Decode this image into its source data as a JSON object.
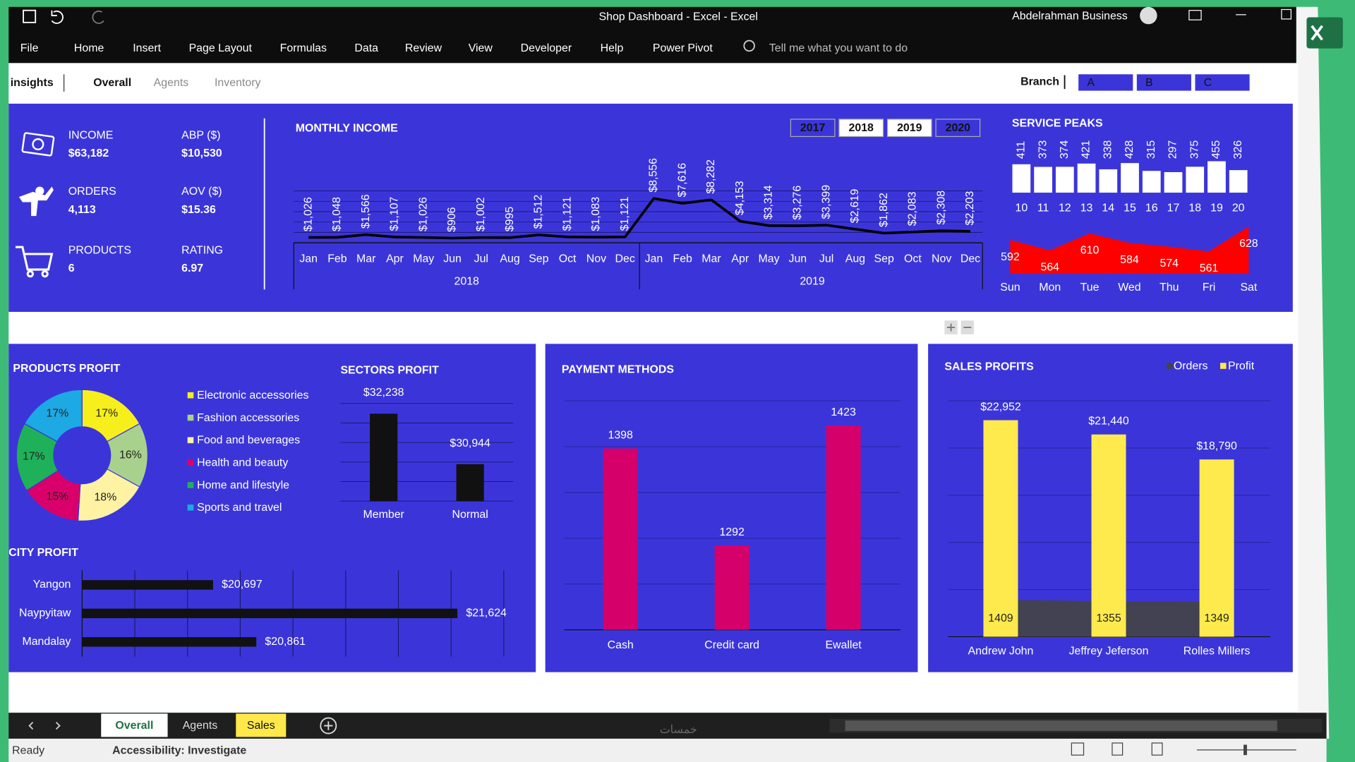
{
  "window": {
    "title": "Shop Dashboard - Excel  -  Excel",
    "user": "Abdelrahman Business"
  },
  "ribbon": {
    "tabs": [
      "File",
      "Home",
      "Insert",
      "Page Layout",
      "Formulas",
      "Data",
      "Review",
      "View",
      "Developer",
      "Help",
      "Power Pivot"
    ],
    "search": "Tell me what you want to do"
  },
  "nav": {
    "title": "insights",
    "tabs": [
      "Overall",
      "Agents",
      "Inventory"
    ],
    "branch_label": "Branch",
    "branches": [
      "A",
      "B",
      "C"
    ]
  },
  "kpis": [
    {
      "label": "INCOME",
      "value": "$63,182"
    },
    {
      "label": "ABP ($)",
      "value": "$10,530"
    },
    {
      "label": "ORDERS",
      "value": "4,113"
    },
    {
      "label": "AOV ($)",
      "value": "$15.36"
    },
    {
      "label": "PRODUCTS",
      "value": "6"
    },
    {
      "label": "RATING",
      "value": "6.97"
    }
  ],
  "monthly_income": {
    "type": "line",
    "title": "MONTHLY INCOME",
    "year_buttons": [
      "2017",
      "2018",
      "2019",
      "2020"
    ],
    "color": "#000000",
    "months": [
      "Jan",
      "Feb",
      "Mar",
      "Apr",
      "May",
      "Jun",
      "Jul",
      "Aug",
      "Sep",
      "Oct",
      "Nov",
      "Dec",
      "Jan",
      "Feb",
      "Mar",
      "Apr",
      "May",
      "Jun",
      "Jul",
      "Aug",
      "Sep",
      "Oct",
      "Nov",
      "Dec"
    ],
    "years": [
      "2018",
      "2019"
    ],
    "values": [
      1026,
      1048,
      1566,
      1107,
      1026,
      906,
      1002,
      995,
      1512,
      1121,
      1083,
      1121,
      8556,
      7616,
      8282,
      4153,
      3314,
      3276,
      3399,
      2619,
      1862,
      2083,
      2308,
      2203
    ],
    "value_labels": [
      "$1,026",
      "$1,048",
      "$1,566",
      "$1,107",
      "$1,026",
      "$906",
      "$1,002",
      "$995",
      "$1,512",
      "$1,121",
      "$1,083",
      "$1,121",
      "$8,556",
      "$7,616",
      "$8,282",
      "$4,153",
      "$3,314",
      "$3,276",
      "$3,399",
      "$2,619",
      "$1,862",
      "$2,083",
      "$2,308",
      "$2,203"
    ],
    "ylim": [
      0,
      10000
    ],
    "yticks": [
      0,
      2000,
      4000,
      6000,
      8000,
      10000
    ]
  },
  "service_peaks": {
    "title": "SERVICE PEAKS",
    "hours": {
      "type": "bar",
      "categories": [
        "10",
        "11",
        "12",
        "13",
        "14",
        "15",
        "16",
        "17",
        "18",
        "19",
        "20"
      ],
      "values": [
        411,
        373,
        374,
        421,
        338,
        428,
        315,
        297,
        375,
        455,
        326
      ],
      "ylim": [
        0,
        500
      ],
      "color": "#ffffff"
    },
    "days": {
      "type": "area",
      "categories": [
        "Sun",
        "Mon",
        "Tue",
        "Wed",
        "Thu",
        "Fri",
        "Sat"
      ],
      "values": [
        592,
        564,
        610,
        584,
        574,
        561,
        628
      ],
      "ylim": [
        500,
        650
      ],
      "color": "#ff0000"
    }
  },
  "products_profit": {
    "type": "donut",
    "title": "PRODUCTS PROFIT",
    "categories": [
      "Electronic accessories",
      "Fashion accessories",
      "Food and beverages",
      "Health and beauty",
      "Home and lifestyle",
      "Sports and travel"
    ],
    "values": [
      17,
      16,
      18,
      15,
      17,
      17
    ],
    "value_labels": [
      "17%",
      "16%",
      "18%",
      "15%",
      "17%",
      "17%"
    ],
    "colors": [
      "#f7ef1c",
      "#a9d18e",
      "#fff2a3",
      "#d9006c",
      "#1fb15a",
      "#1da9e3"
    ]
  },
  "sectors_profit": {
    "type": "bar",
    "title": "SECTORS PROFIT",
    "categories": [
      "Member",
      "Normal"
    ],
    "values": [
      32238,
      30944
    ],
    "value_labels": [
      "$32,238",
      "$30,944"
    ],
    "ylim": [
      30000,
      32500
    ],
    "yticks": [
      30000,
      30500,
      31000,
      31500,
      32000,
      32500
    ],
    "color": "#111111"
  },
  "city_profit": {
    "type": "hbar",
    "title": "CITY PROFIT",
    "categories": [
      "Yangon",
      "Naypyitaw",
      "Mandalay"
    ],
    "values": [
      20697,
      21624,
      20861
    ],
    "value_labels": [
      "$20,697",
      "$21,624",
      "$20,861"
    ],
    "xlim": [
      20200,
      21800
    ],
    "xticks": [
      20200,
      20400,
      20600,
      20800,
      21000,
      21200,
      21400,
      21600,
      21800
    ],
    "color": "#111111"
  },
  "payment_methods": {
    "type": "bar",
    "title": "PAYMENT METHODS",
    "categories": [
      "Cash",
      "Credit card",
      "Ewallet"
    ],
    "values": [
      1398,
      1292,
      1423
    ],
    "ylim": [
      1200,
      1450
    ],
    "yticks": [
      1200,
      1250,
      1300,
      1350,
      1400,
      1450
    ],
    "color": "#d6006b"
  },
  "sales_profits": {
    "type": "bar",
    "title": "SALES PROFITS",
    "categories": [
      "Andrew John",
      "Jeffrey Jeferson",
      "Rolles Millers"
    ],
    "ylim": [
      0,
      25000
    ],
    "yticks": [
      0,
      5000,
      10000,
      15000,
      20000,
      25000
    ],
    "y2lim": [
      0,
      9000
    ],
    "series": [
      {
        "name": "Orders",
        "color": "#444444",
        "axis": "y2",
        "values": [
          1409,
          1355,
          1349
        ]
      },
      {
        "name": "Profit",
        "color": "#ffea4d",
        "values": [
          22952,
          21440,
          18790
        ],
        "value_labels": [
          "$22,952",
          "$21,440",
          "$18,790"
        ]
      }
    ]
  },
  "sheet_tabs": [
    "Overall",
    "Agents",
    "Sales"
  ],
  "status": {
    "ready": "Ready",
    "accessibility": "Accessibility: Investigate"
  },
  "watermark": "خمسات"
}
